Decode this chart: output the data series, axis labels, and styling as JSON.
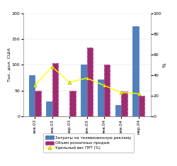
{
  "categories": [
    "янв.03",
    "фев.03",
    "мар.03",
    "дек.03",
    "янв.04",
    "фев.04",
    "мар.04"
  ],
  "bar_blue": [
    80,
    28,
    0,
    100,
    72,
    22,
    175
  ],
  "bar_pink": [
    50,
    103,
    50,
    133,
    100,
    48,
    40
  ],
  "line_prt": [
    30,
    48,
    33,
    37,
    30,
    23,
    22
  ],
  "ylim_left": [
    0,
    200
  ],
  "ylim_right": [
    0,
    100
  ],
  "yticks_left": [
    0,
    50,
    100,
    150,
    200
  ],
  "yticks_right": [
    0,
    20,
    40,
    60,
    80,
    100
  ],
  "ylabel_left": "Тыс. дол. США",
  "ylabel_right": "%",
  "legend_blue": "Затраты на телевизионную рекламу",
  "legend_pink": "Объем розничных продаж",
  "legend_line": "Удельный вес ПРТ (%)",
  "blue_color": "#4f81bd",
  "pink_color": "#9B2D6F",
  "line_color": "#FFFF00",
  "bg_color": "#FFFFFF",
  "figsize": [
    2.5,
    2.34
  ],
  "dpi": 100
}
